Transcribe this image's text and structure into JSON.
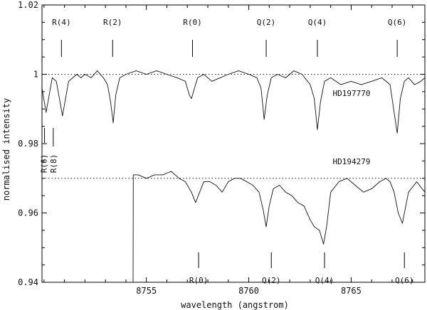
{
  "chart_data": {
    "type": "line",
    "title": "",
    "xlabel": "wavelength (angstrom)",
    "ylabel": "normalised intensity",
    "xlim": [
      8749.9,
      8768.6
    ],
    "ylim": [
      0.94,
      1.02
    ],
    "x_ticks": [
      8755,
      8760,
      8765
    ],
    "x_tick_labels": [
      "8755",
      "8760",
      "8765"
    ],
    "y_ticks": [
      0.94,
      0.96,
      0.98,
      1.0,
      1.02
    ],
    "y_tick_labels": [
      "0.94",
      "0.96",
      "0.98",
      "1",
      "1.02"
    ],
    "grid": false,
    "reference_lines": [
      {
        "y": 1.0,
        "style": "dotted"
      },
      {
        "y": 0.97,
        "style": "dotted"
      }
    ],
    "series": [
      {
        "name": "HD197770",
        "x": [
          8749.9,
          8750.1,
          8750.25,
          8750.4,
          8750.6,
          8750.75,
          8750.9,
          8751.05,
          8751.2,
          8751.4,
          8751.6,
          8751.8,
          8752.0,
          8752.3,
          8752.6,
          8752.9,
          8753.1,
          8753.25,
          8753.38,
          8753.5,
          8753.7,
          8754.0,
          8754.5,
          8755.0,
          8755.5,
          8756.0,
          8756.5,
          8756.9,
          8757.1,
          8757.2,
          8757.35,
          8757.5,
          8757.8,
          8758.2,
          8758.6,
          8759.0,
          8759.5,
          8760.0,
          8760.4,
          8760.6,
          8760.75,
          8760.9,
          8761.1,
          8761.4,
          8761.8,
          8762.2,
          8762.6,
          8763.0,
          8763.2,
          8763.35,
          8763.5,
          8763.7,
          8764.0,
          8764.5,
          8765.0,
          8765.5,
          8766.0,
          8766.5,
          8766.9,
          8767.1,
          8767.25,
          8767.4,
          8767.6,
          8767.8,
          8768.1,
          8768.4,
          8768.6
        ],
        "y": [
          0.996,
          0.989,
          0.994,
          0.999,
          0.998,
          0.993,
          0.988,
          0.993,
          0.998,
          0.999,
          1.0,
          0.999,
          1.0,
          0.999,
          1.001,
          0.999,
          0.997,
          0.992,
          0.986,
          0.994,
          0.999,
          1.0,
          1.001,
          1.0,
          1.001,
          1.0,
          0.999,
          0.998,
          0.994,
          0.993,
          0.996,
          0.999,
          1.0,
          0.998,
          0.999,
          1.0,
          1.001,
          1.0,
          0.999,
          0.996,
          0.987,
          0.994,
          0.999,
          1.0,
          0.999,
          1.001,
          1.0,
          0.997,
          0.993,
          0.984,
          0.992,
          0.998,
          0.999,
          0.997,
          0.998,
          0.997,
          0.998,
          0.999,
          0.997,
          0.989,
          0.983,
          0.993,
          0.998,
          0.999,
          0.997,
          0.998,
          0.999
        ]
      },
      {
        "name": "HD194279",
        "x": [
          8754.35,
          8754.36,
          8754.6,
          8755.0,
          8755.4,
          8755.8,
          8756.2,
          8756.6,
          8756.9,
          8757.2,
          8757.4,
          8757.6,
          8757.8,
          8758.1,
          8758.4,
          8758.7,
          8759.0,
          8759.3,
          8759.6,
          8759.9,
          8760.2,
          8760.5,
          8760.7,
          8760.85,
          8761.0,
          8761.2,
          8761.5,
          8761.8,
          8762.1,
          8762.4,
          8762.7,
          8763.0,
          8763.2,
          8763.45,
          8763.65,
          8763.8,
          8764.0,
          8764.4,
          8764.8,
          8765.2,
          8765.6,
          8766.0,
          8766.4,
          8766.7,
          8766.9,
          8767.1,
          8767.3,
          8767.5,
          8767.8,
          8768.2,
          8768.6
        ],
        "y": [
          0.94,
          0.971,
          0.971,
          0.97,
          0.971,
          0.971,
          0.972,
          0.97,
          0.969,
          0.966,
          0.963,
          0.966,
          0.969,
          0.969,
          0.968,
          0.966,
          0.969,
          0.97,
          0.97,
          0.969,
          0.968,
          0.966,
          0.961,
          0.956,
          0.962,
          0.967,
          0.968,
          0.966,
          0.965,
          0.963,
          0.962,
          0.958,
          0.956,
          0.955,
          0.951,
          0.956,
          0.966,
          0.969,
          0.97,
          0.968,
          0.966,
          0.967,
          0.969,
          0.97,
          0.969,
          0.966,
          0.96,
          0.957,
          0.966,
          0.969,
          0.966
        ]
      }
    ],
    "series_labels": [
      {
        "text": "HD197770",
        "x": 8764.1,
        "y": 0.9937
      },
      {
        "text": "HD194279",
        "x": 8764.1,
        "y": 0.9741
      }
    ],
    "line_markers_top": [
      {
        "label": "R(4)",
        "x": 8750.85
      },
      {
        "label": "R(2)",
        "x": 8753.35
      },
      {
        "label": "R(0)",
        "x": 8757.25
      },
      {
        "label": "Q(2)",
        "x": 8760.85
      },
      {
        "label": "Q(4)",
        "x": 8763.35
      },
      {
        "label": "Q(6)",
        "x": 8767.25
      }
    ],
    "line_markers_left": [
      {
        "label": "R(6)",
        "x": 8749.92
      },
      {
        "label": "R(8)",
        "x": 8750.45
      }
    ],
    "line_markers_bottom": [
      {
        "label": "R(0)",
        "x": 8757.55
      },
      {
        "label": "Q(2)",
        "x": 8761.1
      },
      {
        "label": "Q(4)",
        "x": 8763.7
      },
      {
        "label": "Q(6)",
        "x": 8767.6
      }
    ]
  }
}
